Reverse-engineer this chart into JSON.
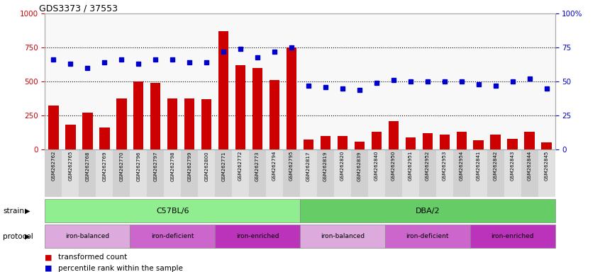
{
  "title": "GDS3373 / 37553",
  "samples": [
    "GSM262762",
    "GSM262765",
    "GSM262768",
    "GSM262769",
    "GSM262770",
    "GSM262796",
    "GSM262797",
    "GSM262798",
    "GSM262799",
    "GSM262800",
    "GSM262771",
    "GSM262772",
    "GSM262773",
    "GSM262794",
    "GSM262795",
    "GSM262817",
    "GSM262819",
    "GSM262820",
    "GSM262839",
    "GSM262840",
    "GSM262950",
    "GSM262951",
    "GSM262952",
    "GSM262953",
    "GSM262954",
    "GSM262841",
    "GSM262842",
    "GSM262843",
    "GSM262844",
    "GSM262845"
  ],
  "bar_values": [
    325,
    185,
    270,
    165,
    375,
    500,
    490,
    375,
    375,
    370,
    870,
    620,
    600,
    510,
    750,
    75,
    100,
    100,
    60,
    130,
    210,
    90,
    120,
    110,
    130,
    70,
    110,
    80,
    130,
    55
  ],
  "dot_values": [
    66,
    63,
    60,
    64,
    66,
    63,
    66,
    66,
    64,
    64,
    72,
    74,
    68,
    72,
    75,
    47,
    46,
    45,
    44,
    49,
    51,
    50,
    50,
    50,
    50,
    48,
    47,
    50,
    52,
    45
  ],
  "strains": [
    {
      "label": "C57BL/6",
      "start": 0,
      "end": 15,
      "color": "#90ee90"
    },
    {
      "label": "DBA/2",
      "start": 15,
      "end": 30,
      "color": "#66cc66"
    }
  ],
  "protocols": [
    {
      "label": "iron-balanced",
      "start": 0,
      "end": 5,
      "color": "#ddaadd"
    },
    {
      "label": "iron-deficient",
      "start": 5,
      "end": 10,
      "color": "#cc66cc"
    },
    {
      "label": "iron-enriched",
      "start": 10,
      "end": 15,
      "color": "#bb33bb"
    },
    {
      "label": "iron-balanced",
      "start": 15,
      "end": 20,
      "color": "#ddaadd"
    },
    {
      "label": "iron-deficient",
      "start": 20,
      "end": 25,
      "color": "#cc66cc"
    },
    {
      "label": "iron-enriched",
      "start": 25,
      "end": 30,
      "color": "#bb33bb"
    }
  ],
  "bar_color": "#cc0000",
  "dot_color": "#0000cc",
  "ylim_left": [
    0,
    1000
  ],
  "ylim_right": [
    0,
    100
  ],
  "yticks_left": [
    0,
    250,
    500,
    750,
    1000
  ],
  "yticks_right": [
    0,
    25,
    50,
    75,
    100
  ],
  "legend_bar": "transformed count",
  "legend_dot": "percentile rank within the sample",
  "strain_label": "strain",
  "protocol_label": "protocol"
}
